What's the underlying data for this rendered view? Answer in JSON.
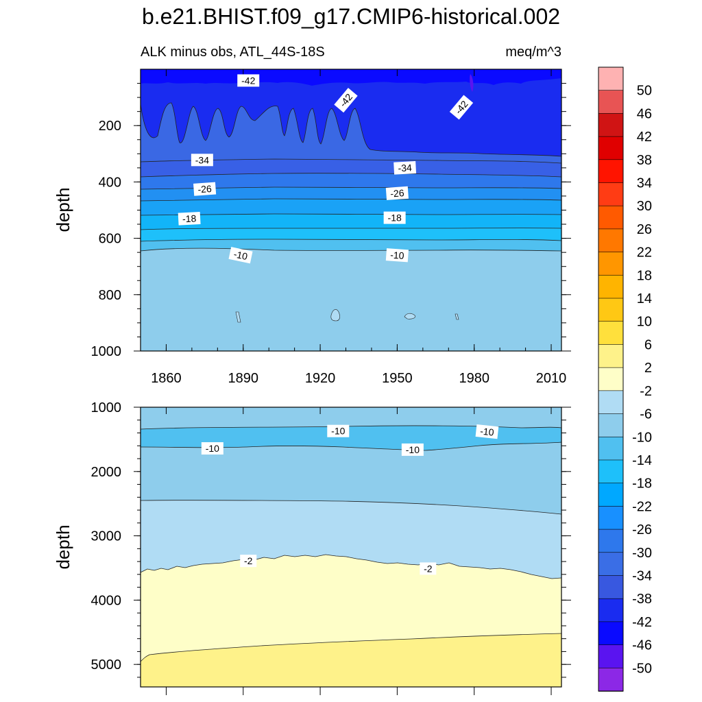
{
  "title": "b.e21.BHIST.f09_g17.CMIP6-historical.002",
  "subtitle_left": "ALK minus obs, ATL_44S-18S",
  "subtitle_right": "meq/m^3",
  "chart_data": [
    {
      "type": "contour",
      "panel": "upper",
      "variable": "ALK minus obs",
      "region": "ATL_44S-18S",
      "units": "meq/m^3",
      "xlabel": "",
      "ylabel": "depth",
      "xlim": [
        1850,
        2014
      ],
      "ylim": [
        1000,
        0
      ],
      "xticks": [
        1860,
        1890,
        1920,
        1950,
        1980,
        2010
      ],
      "xtick_labels": [
        "1860",
        "1890",
        "1920",
        "1950",
        "1980",
        "2010"
      ],
      "yticks": [
        200,
        400,
        600,
        800,
        1000
      ],
      "ytick_labels": [
        "200",
        "400",
        "600",
        "800",
        "1000"
      ],
      "contour_labels": [
        {
          "text": "-42",
          "year": 1892,
          "depth": 40
        },
        {
          "text": "-42",
          "year": 1930,
          "depth": 110
        },
        {
          "text": "-42",
          "year": 1975,
          "depth": 135
        },
        {
          "text": "-34",
          "year": 1874,
          "depth": 322
        },
        {
          "text": "-34",
          "year": 1953,
          "depth": 350
        },
        {
          "text": "-26",
          "year": 1875,
          "depth": 425
        },
        {
          "text": "-26",
          "year": 1950,
          "depth": 440
        },
        {
          "text": "-18",
          "year": 1869,
          "depth": 530
        },
        {
          "text": "-18",
          "year": 1949,
          "depth": 527
        },
        {
          "text": "-10",
          "year": 1889,
          "depth": 660
        },
        {
          "text": "-10",
          "year": 1950,
          "depth": 660
        }
      ],
      "bands": [
        {
          "lower": "-46",
          "upper": "-42",
          "color": "#1010ff",
          "top_depth": 0,
          "bottom_depth": 100
        },
        {
          "lower": "-42",
          "upper": "-38",
          "color": "#1a2cf0",
          "top_depth": 100,
          "bottom_depth": 300
        },
        {
          "lower": "-38",
          "upper": "-34",
          "color": "#3860e6",
          "top_depth": 300,
          "bottom_depth": 345
        },
        {
          "lower": "-34",
          "upper": "-30",
          "color": "#2e78ec",
          "top_depth": 345,
          "bottom_depth": 390
        },
        {
          "lower": "-30",
          "upper": "-26",
          "color": "#2290f2",
          "top_depth": 390,
          "bottom_depth": 430
        },
        {
          "lower": "-26",
          "upper": "-22",
          "color": "#1aa2f6",
          "top_depth": 430,
          "bottom_depth": 480
        },
        {
          "lower": "-22",
          "upper": "-18",
          "color": "#12b4f8",
          "top_depth": 480,
          "bottom_depth": 530
        },
        {
          "lower": "-18",
          "upper": "-14",
          "color": "#1ec0fa",
          "top_depth": 530,
          "bottom_depth": 570
        },
        {
          "lower": "-14",
          "upper": "-10",
          "color": "#50c0f0",
          "top_depth": 570,
          "bottom_depth": 640
        },
        {
          "lower": "-10",
          "upper": "-6",
          "color": "#8ecdec",
          "top_depth": 640,
          "bottom_depth": 1000
        }
      ]
    },
    {
      "type": "contour",
      "panel": "lower",
      "variable": "ALK minus obs",
      "region": "ATL_44S-18S",
      "units": "meq/m^3",
      "xlabel": "",
      "ylabel": "depth",
      "xlim": [
        1850,
        2014
      ],
      "ylim": [
        5350,
        1000
      ],
      "yticks": [
        1000,
        2000,
        3000,
        4000,
        5000
      ],
      "ytick_labels": [
        "1000",
        "2000",
        "3000",
        "4000",
        "5000"
      ],
      "contour_labels": [
        {
          "text": "-10",
          "year": 1927,
          "depth": 1370
        },
        {
          "text": "-10",
          "year": 1878,
          "depth": 1640
        },
        {
          "text": "-10",
          "year": 1956,
          "depth": 1660
        },
        {
          "text": "-10",
          "year": 1985,
          "depth": 1380
        },
        {
          "text": "-2",
          "year": 1892,
          "depth": 3390
        },
        {
          "text": "-2",
          "year": 1962,
          "depth": 3510
        }
      ],
      "bands": [
        {
          "lower": "-10",
          "upper": "-6",
          "color": "#8ecdec",
          "top_depth": 1000,
          "bottom_depth": 1320
        },
        {
          "lower": "-14",
          "upper": "-10",
          "color": "#50c0f0",
          "top_depth": 1320,
          "bottom_depth": 1620
        },
        {
          "lower": "-10",
          "upper": "-6",
          "color": "#8ecdec",
          "top_depth": 1620,
          "bottom_depth": 2460
        },
        {
          "lower": "-6",
          "upper": "-2",
          "color": "#b0dcf4",
          "top_depth": 2460,
          "bottom_depth": 3450
        },
        {
          "lower": "-2",
          "upper": "2",
          "color": "#fefec8",
          "top_depth": 3450,
          "bottom_depth": 4650
        },
        {
          "lower": "2",
          "upper": "6",
          "color": "#fef28a",
          "top_depth": 4650,
          "bottom_depth": 5350
        }
      ]
    }
  ],
  "colorbar": {
    "labels": [
      "50",
      "46",
      "42",
      "38",
      "34",
      "30",
      "26",
      "22",
      "18",
      "14",
      "10",
      "6",
      "2",
      "-2",
      "-6",
      "-10",
      "-14",
      "-18",
      "-22",
      "-26",
      "-30",
      "-34",
      "-38",
      "-42",
      "-46",
      "-50"
    ],
    "colors": [
      "#feb2b2",
      "#e85454",
      "#d01414",
      "#e00000",
      "#ff1400",
      "#ff3c14",
      "#ff5a00",
      "#ff7800",
      "#ff9600",
      "#ffb400",
      "#ffc814",
      "#ffe03c",
      "#fef28a",
      "#fefec8",
      "#b0dcf4",
      "#8ecdec",
      "#50c0f0",
      "#1ec0fa",
      "#00a8ff",
      "#1890ff",
      "#2e78ec",
      "#3a6ee6",
      "#3858e0",
      "#1a2cf0",
      "#0a0aff",
      "#5a14f0",
      "#8c28e6"
    ]
  }
}
